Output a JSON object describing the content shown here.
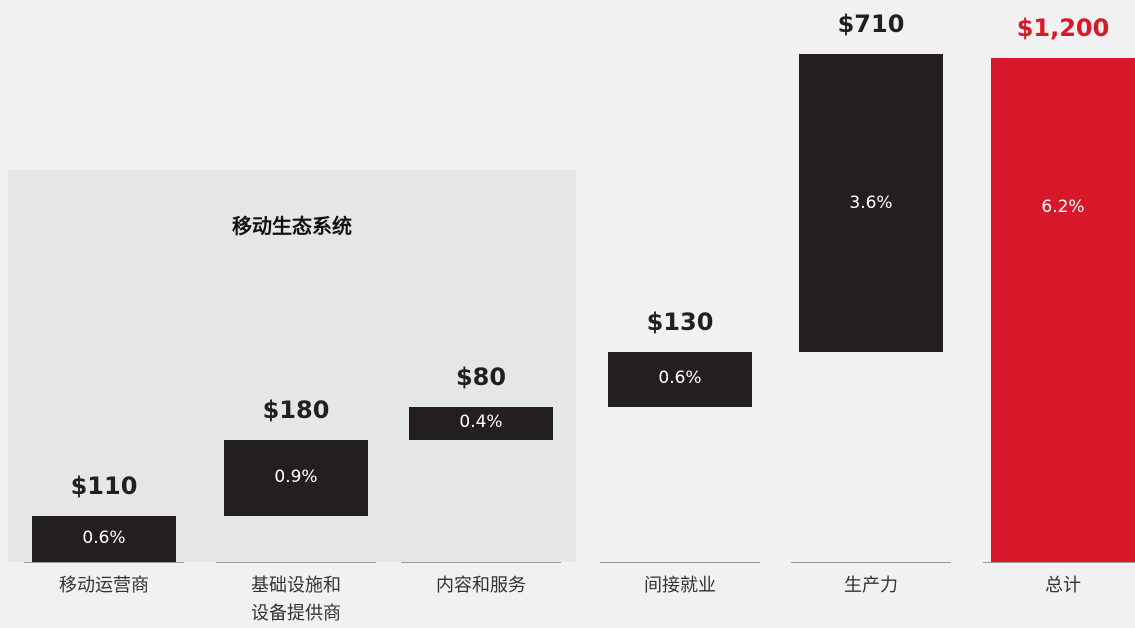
{
  "chart_data": {
    "type": "waterfall",
    "group_label": "移动生态系统",
    "categories": [
      "移动运营商",
      "基础设施和\n设备提供商",
      "内容和服务",
      "间接就业",
      "生产力",
      "总计"
    ],
    "values": [
      110,
      180,
      80,
      130,
      710,
      1200
    ],
    "value_labels": [
      "$110",
      "$180",
      "$80",
      "$130",
      "$710",
      "$1,200"
    ],
    "share_labels": [
      "0.6%",
      "0.9%",
      "0.4%",
      "0.6%",
      "3.6%",
      "6.2%"
    ],
    "total_index": 5,
    "color": "#231f20",
    "total_color": "#d7182a",
    "ylim": [
      0,
      1200
    ]
  }
}
